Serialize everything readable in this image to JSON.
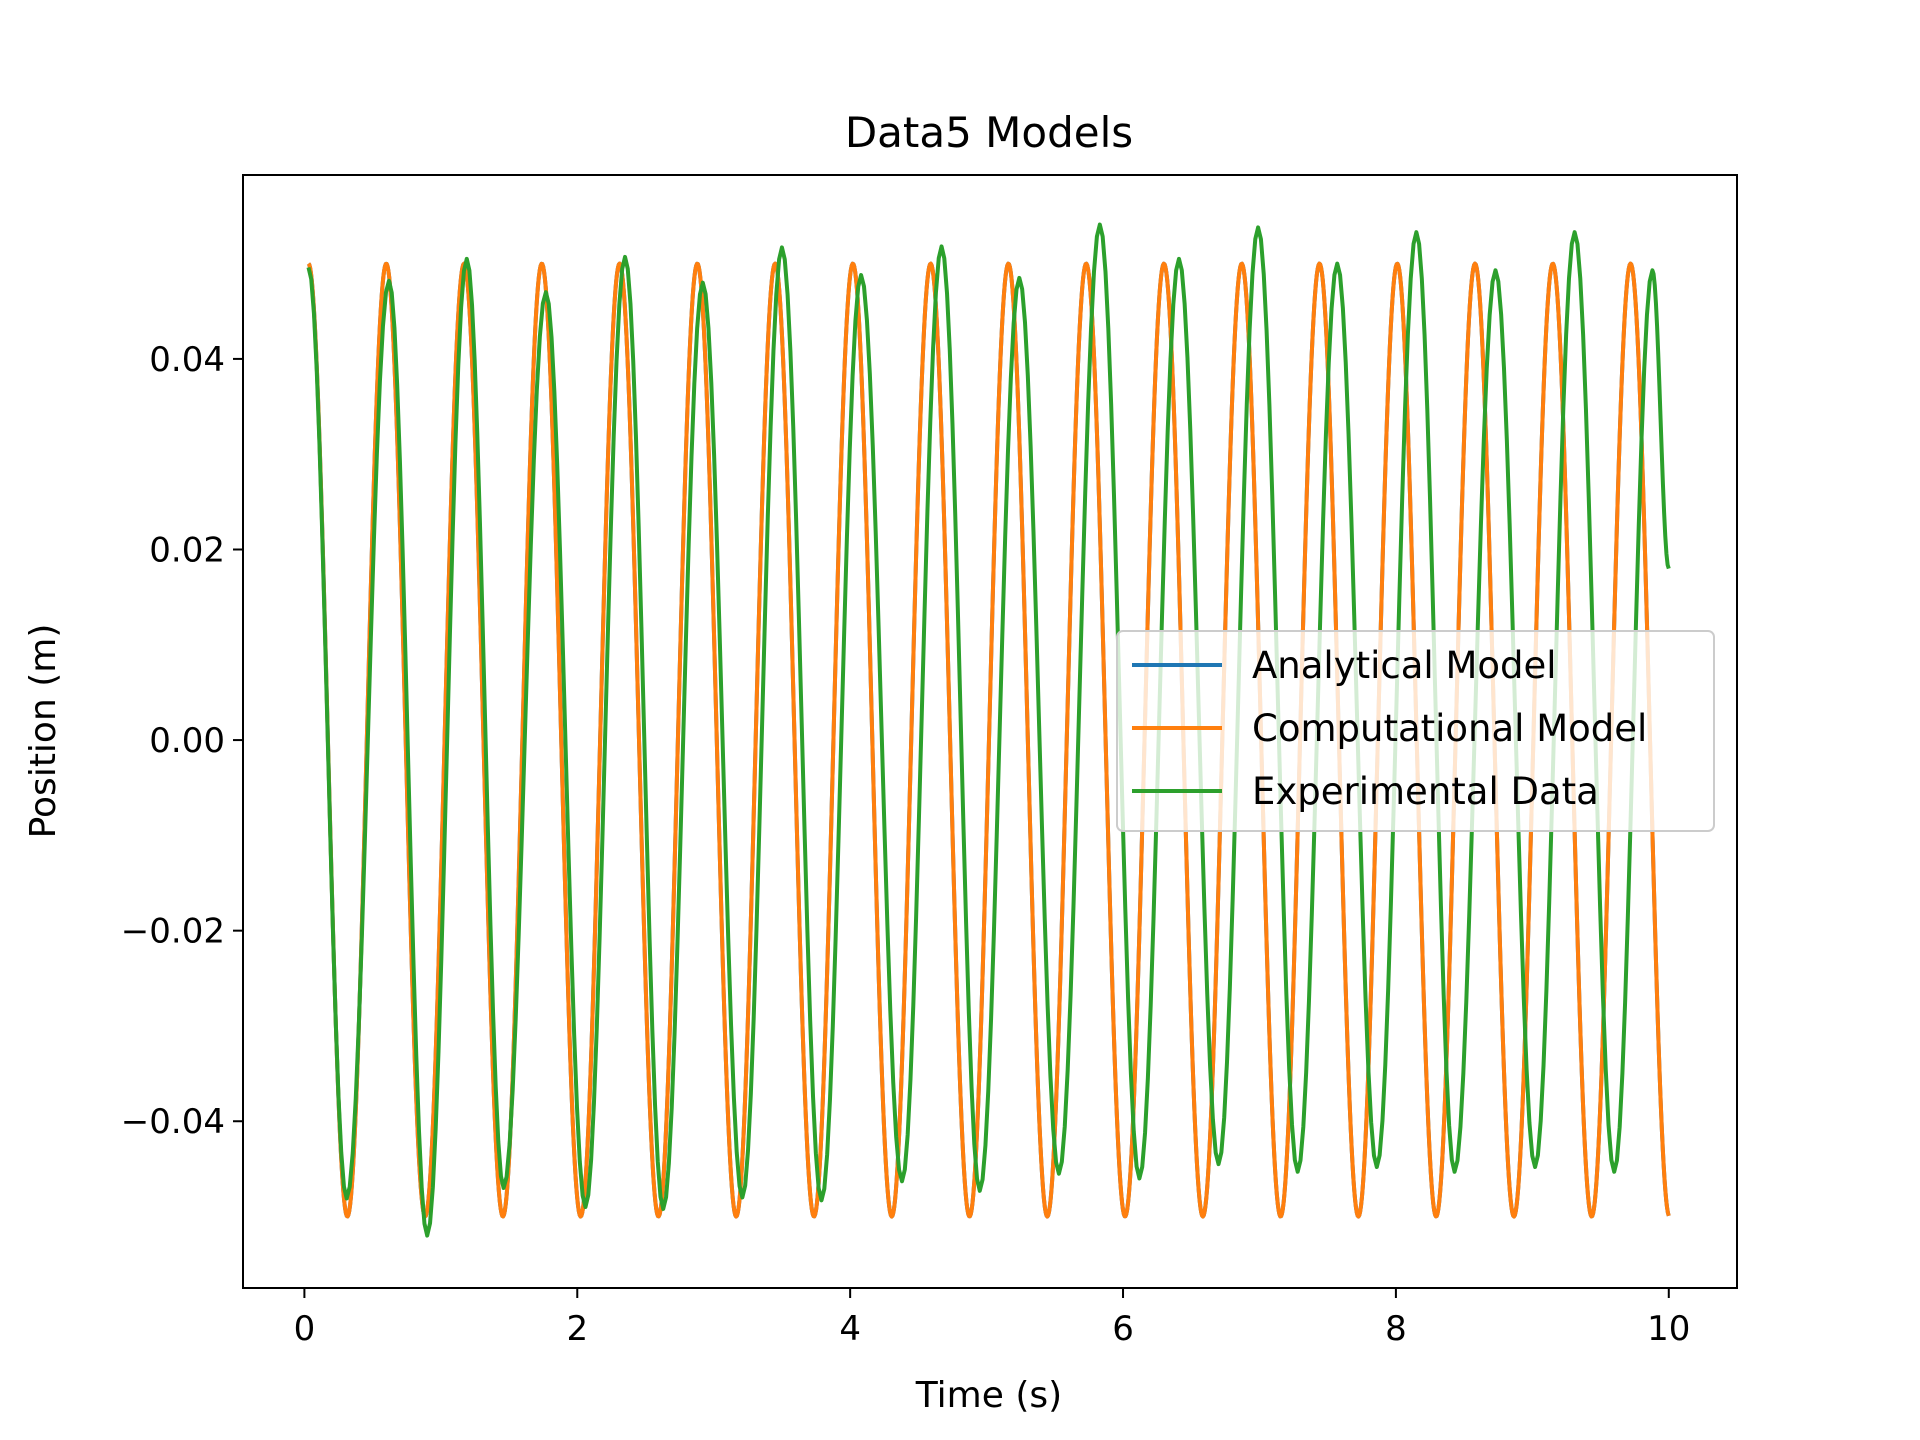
{
  "chart_data": {
    "type": "line",
    "title": "Data5 Models",
    "xlabel": "Time (s)",
    "ylabel": "Position (m)",
    "xlim": [
      -0.45,
      10.5
    ],
    "ylim": [
      -0.0575,
      0.0593
    ],
    "xticks": [
      0,
      2,
      4,
      6,
      8,
      10
    ],
    "xtick_labels": [
      "0",
      "2",
      "4",
      "6",
      "8",
      "10"
    ],
    "yticks": [
      -0.04,
      -0.02,
      0.0,
      0.02,
      0.04
    ],
    "ytick_labels": [
      "−0.04",
      "−0.02",
      "0.00",
      "0.02",
      "0.04"
    ],
    "grid": false,
    "legend_position": "center right",
    "series": [
      {
        "name": "Analytical Model",
        "color": "#1f77b4",
        "model": "cosine",
        "amplitude": 0.05,
        "period_s": 0.57,
        "t_start": 0.03,
        "t_end": 10.0
      },
      {
        "name": "Computational Model",
        "color": "#ff7f0e",
        "model": "cosine",
        "amplitude": 0.05,
        "period_s": 0.57,
        "t_start": 0.03,
        "t_end": 10.0
      },
      {
        "name": "Experimental Data",
        "color": "#2ca02c",
        "model": "sampled",
        "points": [
          [
            0.03,
            0.0496
          ],
          [
            0.31,
            -0.0481
          ],
          [
            0.62,
            0.0482
          ],
          [
            0.9,
            -0.052
          ],
          [
            1.19,
            0.0505
          ],
          [
            1.46,
            -0.047
          ],
          [
            1.77,
            0.047
          ],
          [
            2.06,
            -0.049
          ],
          [
            2.35,
            0.0507
          ],
          [
            2.63,
            -0.0492
          ],
          [
            2.92,
            0.048
          ],
          [
            3.21,
            -0.048
          ],
          [
            3.5,
            0.0517
          ],
          [
            3.79,
            -0.0483
          ],
          [
            4.08,
            0.0488
          ],
          [
            4.38,
            -0.0463
          ],
          [
            4.67,
            0.0518
          ],
          [
            4.95,
            -0.0473
          ],
          [
            5.24,
            0.0485
          ],
          [
            5.53,
            -0.0455
          ],
          [
            5.83,
            0.0541
          ],
          [
            6.12,
            -0.046
          ],
          [
            6.41,
            0.0505
          ],
          [
            6.7,
            -0.0445
          ],
          [
            6.99,
            0.0538
          ],
          [
            7.28,
            -0.0453
          ],
          [
            7.57,
            0.05
          ],
          [
            7.86,
            -0.0448
          ],
          [
            8.15,
            0.0533
          ],
          [
            8.43,
            -0.0453
          ],
          [
            8.73,
            0.0493
          ],
          [
            9.02,
            -0.0448
          ],
          [
            9.31,
            0.0533
          ],
          [
            9.6,
            -0.0453
          ],
          [
            9.88,
            0.0493
          ],
          [
            10.0,
            0.018
          ]
        ]
      }
    ]
  }
}
